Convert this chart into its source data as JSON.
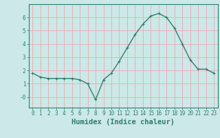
{
  "x": [
    0,
    1,
    2,
    3,
    4,
    5,
    6,
    7,
    8,
    9,
    10,
    11,
    12,
    13,
    14,
    15,
    16,
    17,
    18,
    19,
    20,
    21,
    22,
    23
  ],
  "y": [
    1.8,
    1.5,
    1.4,
    1.4,
    1.4,
    1.4,
    1.3,
    1.0,
    -0.2,
    1.3,
    1.8,
    2.7,
    3.7,
    4.7,
    5.5,
    6.1,
    6.3,
    6.0,
    5.2,
    4.0,
    2.8,
    2.1,
    2.1,
    1.8
  ],
  "line_color": "#2e7d6e",
  "marker": "+",
  "markersize": 3,
  "linewidth": 1.0,
  "xlabel": "Humidex (Indice chaleur)",
  "xlim": [
    -0.5,
    23.5
  ],
  "ylim": [
    -0.8,
    7.0
  ],
  "yticks": [
    0,
    1,
    2,
    3,
    4,
    5,
    6
  ],
  "ytick_labels": [
    "-0",
    "1",
    "2",
    "3",
    "4",
    "5",
    "6"
  ],
  "xticks": [
    0,
    1,
    2,
    3,
    4,
    5,
    6,
    7,
    8,
    9,
    10,
    11,
    12,
    13,
    14,
    15,
    16,
    17,
    18,
    19,
    20,
    21,
    22,
    23
  ],
  "background_color": "#cce8e8",
  "grid_color": "#f0a0a0",
  "axes_color": "#2e7d6e",
  "tick_labelsize": 5.5,
  "xlabel_fontsize": 7.5
}
